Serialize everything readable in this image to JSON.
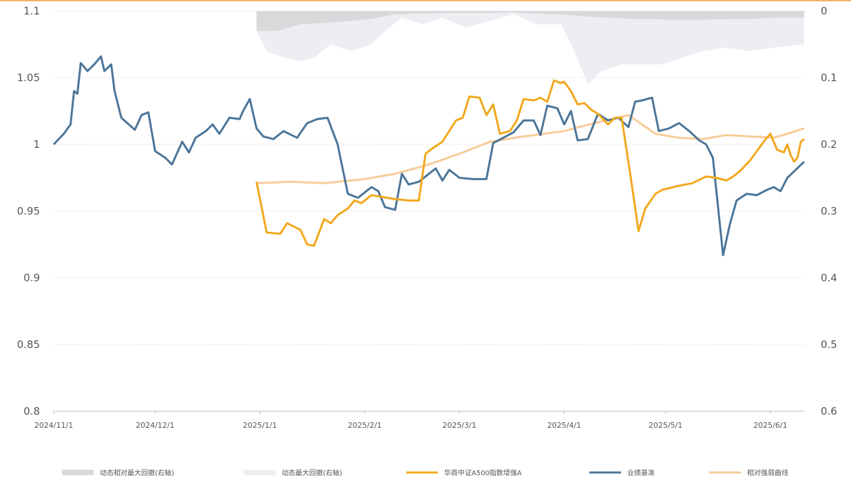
{
  "chart_data": {
    "type": "line",
    "title": "",
    "xlabel": "",
    "ylabel": "",
    "ylim_left": [
      0.8,
      1.1
    ],
    "ylim_right_inverted": [
      0,
      0.6
    ],
    "left_ticks": [
      "1.1",
      "1.05",
      "1",
      "0.95",
      "0.9",
      "0.85",
      "0.8"
    ],
    "right_ticks": [
      "0",
      "0.1",
      "0.2",
      "0.3",
      "0.4",
      "0.5",
      "0.6"
    ],
    "x_ticks": [
      {
        "date": "2024-11-01",
        "label": "2024/11/1"
      },
      {
        "date": "2024-12-01",
        "label": "2024/12/1"
      },
      {
        "date": "2025-01-01",
        "label": "2025/1/1"
      },
      {
        "date": "2025-02-01",
        "label": "2025/2/1"
      },
      {
        "date": "2025-03-01",
        "label": "2025/3/1"
      },
      {
        "date": "2025-04-01",
        "label": "2025/4/1"
      },
      {
        "date": "2025-05-01",
        "label": "2025/5/1"
      },
      {
        "date": "2025-06-01",
        "label": "2025/6/1"
      }
    ],
    "x_range": [
      "2024-11-01",
      "2025-06-11"
    ],
    "grid": "horizontal-dotted",
    "legend_position": "bottom",
    "series": [
      {
        "name": "动态相对最大回撤(右轴)",
        "kind": "area",
        "axis": "right",
        "color": "#d9d9dc",
        "points": [
          [
            "2024-12-31",
            0.03
          ],
          [
            "2025-01-06",
            0.03
          ],
          [
            "2025-01-13",
            0.02
          ],
          [
            "2025-01-20",
            0.018
          ],
          [
            "2025-01-27",
            0.015
          ],
          [
            "2025-02-03",
            0.012
          ],
          [
            "2025-02-10",
            0.005
          ],
          [
            "2025-02-17",
            0.004
          ],
          [
            "2025-02-24",
            0.003
          ],
          [
            "2025-03-03",
            0.003
          ],
          [
            "2025-03-10",
            0.003
          ],
          [
            "2025-03-17",
            0.002
          ],
          [
            "2025-03-24",
            0.004
          ],
          [
            "2025-03-31",
            0.005
          ],
          [
            "2025-04-07",
            0.008
          ],
          [
            "2025-04-14",
            0.01
          ],
          [
            "2025-04-21",
            0.012
          ],
          [
            "2025-04-28",
            0.012
          ],
          [
            "2025-05-05",
            0.014
          ],
          [
            "2025-05-12",
            0.013
          ],
          [
            "2025-05-19",
            0.012
          ],
          [
            "2025-05-26",
            0.012
          ],
          [
            "2025-06-02",
            0.01
          ],
          [
            "2025-06-11",
            0.01
          ]
        ]
      },
      {
        "name": "动态最大回撤(右轴)",
        "kind": "area",
        "axis": "right",
        "color": "#eceef3",
        "points": [
          [
            "2024-12-31",
            0.03
          ],
          [
            "2025-01-03",
            0.06
          ],
          [
            "2025-01-08",
            0.07
          ],
          [
            "2025-01-13",
            0.075
          ],
          [
            "2025-01-17",
            0.07
          ],
          [
            "2025-01-22",
            0.05
          ],
          [
            "2025-01-28",
            0.06
          ],
          [
            "2025-02-03",
            0.05
          ],
          [
            "2025-02-07",
            0.03
          ],
          [
            "2025-02-12",
            0.01
          ],
          [
            "2025-02-18",
            0.02
          ],
          [
            "2025-02-24",
            0.01
          ],
          [
            "2025-03-03",
            0.025
          ],
          [
            "2025-03-10",
            0.015
          ],
          [
            "2025-03-17",
            0.005
          ],
          [
            "2025-03-24",
            0.02
          ],
          [
            "2025-03-31",
            0.02
          ],
          [
            "2025-04-04",
            0.06
          ],
          [
            "2025-04-08",
            0.11
          ],
          [
            "2025-04-12",
            0.09
          ],
          [
            "2025-04-18",
            0.08
          ],
          [
            "2025-04-24",
            0.08
          ],
          [
            "2025-04-30",
            0.08
          ],
          [
            "2025-05-06",
            0.07
          ],
          [
            "2025-05-12",
            0.06
          ],
          [
            "2025-05-19",
            0.055
          ],
          [
            "2025-05-26",
            0.06
          ],
          [
            "2025-06-02",
            0.055
          ],
          [
            "2025-06-11",
            0.05
          ]
        ]
      },
      {
        "name": "华商中证A500指数增强A",
        "kind": "line",
        "axis": "left",
        "color": "#f2a81d",
        "points": [
          [
            "2024-12-31",
            0.972
          ],
          [
            "2025-01-03",
            0.934
          ],
          [
            "2025-01-07",
            0.933
          ],
          [
            "2025-01-09",
            0.941
          ],
          [
            "2025-01-13",
            0.936
          ],
          [
            "2025-01-15",
            0.925
          ],
          [
            "2025-01-17",
            0.924
          ],
          [
            "2025-01-20",
            0.944
          ],
          [
            "2025-01-22",
            0.941
          ],
          [
            "2025-01-24",
            0.947
          ],
          [
            "2025-01-27",
            0.952
          ],
          [
            "2025-01-29",
            0.958
          ],
          [
            "2025-01-31",
            0.956
          ],
          [
            "2025-02-03",
            0.962
          ],
          [
            "2025-02-10",
            0.959
          ],
          [
            "2025-02-14",
            0.958
          ],
          [
            "2025-02-17",
            0.958
          ],
          [
            "2025-02-19",
            0.993
          ],
          [
            "2025-02-21",
            0.997
          ],
          [
            "2025-02-24",
            1.002
          ],
          [
            "2025-02-26",
            1.01
          ],
          [
            "2025-02-28",
            1.018
          ],
          [
            "2025-03-02",
            1.02
          ],
          [
            "2025-03-04",
            1.036
          ],
          [
            "2025-03-07",
            1.035
          ],
          [
            "2025-03-09",
            1.022
          ],
          [
            "2025-03-11",
            1.03
          ],
          [
            "2025-03-13",
            1.008
          ],
          [
            "2025-03-16",
            1.01
          ],
          [
            "2025-03-18",
            1.018
          ],
          [
            "2025-03-20",
            1.034
          ],
          [
            "2025-03-23",
            1.033
          ],
          [
            "2025-03-25",
            1.035
          ],
          [
            "2025-03-27",
            1.032
          ],
          [
            "2025-03-29",
            1.048
          ],
          [
            "2025-03-31",
            1.046
          ],
          [
            "2025-04-01",
            1.047
          ],
          [
            "2025-04-03",
            1.04
          ],
          [
            "2025-04-05",
            1.03
          ],
          [
            "2025-04-07",
            1.031
          ],
          [
            "2025-04-09",
            1.026
          ],
          [
            "2025-04-11",
            1.023
          ],
          [
            "2025-04-14",
            1.015
          ],
          [
            "2025-04-16",
            1.02
          ],
          [
            "2025-04-18",
            1.02
          ],
          [
            "2025-04-21",
            0.97
          ],
          [
            "2025-04-23",
            0.935
          ],
          [
            "2025-04-25",
            0.952
          ],
          [
            "2025-04-28",
            0.963
          ],
          [
            "2025-04-30",
            0.966
          ],
          [
            "2025-05-05",
            0.969
          ],
          [
            "2025-05-09",
            0.971
          ],
          [
            "2025-05-13",
            0.976
          ],
          [
            "2025-05-16",
            0.975
          ],
          [
            "2025-05-19",
            0.973
          ],
          [
            "2025-05-21",
            0.976
          ],
          [
            "2025-05-23",
            0.98
          ],
          [
            "2025-05-26",
            0.988
          ],
          [
            "2025-05-28",
            0.995
          ],
          [
            "2025-05-30",
            1.002
          ],
          [
            "2025-06-01",
            1.008
          ],
          [
            "2025-06-03",
            0.996
          ],
          [
            "2025-06-05",
            0.994
          ],
          [
            "2025-06-06",
            1.0
          ],
          [
            "2025-06-07",
            0.992
          ],
          [
            "2025-06-08",
            0.987
          ],
          [
            "2025-06-09",
            0.99
          ],
          [
            "2025-06-10",
            1.002
          ],
          [
            "2025-06-11",
            1.004
          ]
        ]
      },
      {
        "name": "业绩基准",
        "kind": "line",
        "axis": "left",
        "color": "#4b7599",
        "points": [
          [
            "2024-11-01",
            1.0
          ],
          [
            "2024-11-04",
            1.008
          ],
          [
            "2024-11-06",
            1.015
          ],
          [
            "2024-11-07",
            1.04
          ],
          [
            "2024-11-08",
            1.038
          ],
          [
            "2024-11-09",
            1.061
          ],
          [
            "2024-11-11",
            1.055
          ],
          [
            "2024-11-13",
            1.06
          ],
          [
            "2024-11-15",
            1.066
          ],
          [
            "2024-11-16",
            1.055
          ],
          [
            "2024-11-18",
            1.06
          ],
          [
            "2024-11-19",
            1.04
          ],
          [
            "2024-11-21",
            1.02
          ],
          [
            "2024-11-25",
            1.011
          ],
          [
            "2024-11-27",
            1.022
          ],
          [
            "2024-11-29",
            1.024
          ],
          [
            "2024-12-01",
            0.995
          ],
          [
            "2024-12-04",
            0.99
          ],
          [
            "2024-12-06",
            0.985
          ],
          [
            "2024-12-09",
            1.002
          ],
          [
            "2024-12-11",
            0.994
          ],
          [
            "2024-12-13",
            1.005
          ],
          [
            "2024-12-16",
            1.01
          ],
          [
            "2024-12-18",
            1.015
          ],
          [
            "2024-12-20",
            1.008
          ],
          [
            "2024-12-23",
            1.02
          ],
          [
            "2024-12-26",
            1.019
          ],
          [
            "2024-12-27",
            1.025
          ],
          [
            "2024-12-29",
            1.034
          ],
          [
            "2024-12-31",
            1.012
          ],
          [
            "2025-01-02",
            1.006
          ],
          [
            "2025-01-05",
            1.004
          ],
          [
            "2025-01-08",
            1.01
          ],
          [
            "2025-01-12",
            1.005
          ],
          [
            "2025-01-15",
            1.016
          ],
          [
            "2025-01-18",
            1.019
          ],
          [
            "2025-01-21",
            1.02
          ],
          [
            "2025-01-24",
            1.0
          ],
          [
            "2025-01-27",
            0.963
          ],
          [
            "2025-01-30",
            0.96
          ],
          [
            "2025-02-03",
            0.968
          ],
          [
            "2025-02-05",
            0.965
          ],
          [
            "2025-02-07",
            0.953
          ],
          [
            "2025-02-10",
            0.951
          ],
          [
            "2025-02-12",
            0.978
          ],
          [
            "2025-02-14",
            0.97
          ],
          [
            "2025-02-17",
            0.972
          ],
          [
            "2025-02-20",
            0.978
          ],
          [
            "2025-02-22",
            0.982
          ],
          [
            "2025-02-24",
            0.973
          ],
          [
            "2025-02-26",
            0.981
          ],
          [
            "2025-03-01",
            0.975
          ],
          [
            "2025-03-05",
            0.974
          ],
          [
            "2025-03-09",
            0.974
          ],
          [
            "2025-03-11",
            1.001
          ],
          [
            "2025-03-14",
            1.005
          ],
          [
            "2025-03-17",
            1.009
          ],
          [
            "2025-03-20",
            1.018
          ],
          [
            "2025-03-23",
            1.018
          ],
          [
            "2025-03-25",
            1.007
          ],
          [
            "2025-03-27",
            1.029
          ],
          [
            "2025-03-30",
            1.027
          ],
          [
            "2025-04-01",
            1.015
          ],
          [
            "2025-04-03",
            1.025
          ],
          [
            "2025-04-05",
            1.003
          ],
          [
            "2025-04-08",
            1.004
          ],
          [
            "2025-04-11",
            1.023
          ],
          [
            "2025-04-14",
            1.018
          ],
          [
            "2025-04-17",
            1.02
          ],
          [
            "2025-04-20",
            1.013
          ],
          [
            "2025-04-22",
            1.032
          ],
          [
            "2025-04-24",
            1.033
          ],
          [
            "2025-04-27",
            1.035
          ],
          [
            "2025-04-29",
            1.01
          ],
          [
            "2025-05-02",
            1.012
          ],
          [
            "2025-05-05",
            1.016
          ],
          [
            "2025-05-08",
            1.01
          ],
          [
            "2025-05-11",
            1.003
          ],
          [
            "2025-05-13",
            1.0
          ],
          [
            "2025-05-15",
            0.99
          ],
          [
            "2025-05-18",
            0.917
          ],
          [
            "2025-05-20",
            0.94
          ],
          [
            "2025-05-22",
            0.958
          ],
          [
            "2025-05-25",
            0.963
          ],
          [
            "2025-05-28",
            0.962
          ],
          [
            "2025-05-31",
            0.966
          ],
          [
            "2025-06-02",
            0.968
          ],
          [
            "2025-06-04",
            0.965
          ],
          [
            "2025-06-06",
            0.975
          ],
          [
            "2025-06-11",
            0.987
          ]
        ]
      },
      {
        "name": "相对强弱曲线",
        "kind": "line",
        "axis": "left",
        "color": "#f7cc98",
        "points": [
          [
            "2024-12-31",
            0.971
          ],
          [
            "2025-01-10",
            0.972
          ],
          [
            "2025-01-20",
            0.971
          ],
          [
            "2025-02-01",
            0.974
          ],
          [
            "2025-02-10",
            0.978
          ],
          [
            "2025-02-20",
            0.985
          ],
          [
            "2025-03-01",
            0.993
          ],
          [
            "2025-03-10",
            1.002
          ],
          [
            "2025-03-20",
            1.006
          ],
          [
            "2025-04-01",
            1.01
          ],
          [
            "2025-04-10",
            1.016
          ],
          [
            "2025-04-20",
            1.022
          ],
          [
            "2025-04-28",
            1.008
          ],
          [
            "2025-05-05",
            1.005
          ],
          [
            "2025-05-12",
            1.004
          ],
          [
            "2025-05-19",
            1.007
          ],
          [
            "2025-05-26",
            1.006
          ],
          [
            "2025-06-02",
            1.005
          ],
          [
            "2025-06-06",
            1.008
          ],
          [
            "2025-06-11",
            1.012
          ]
        ]
      }
    ]
  }
}
